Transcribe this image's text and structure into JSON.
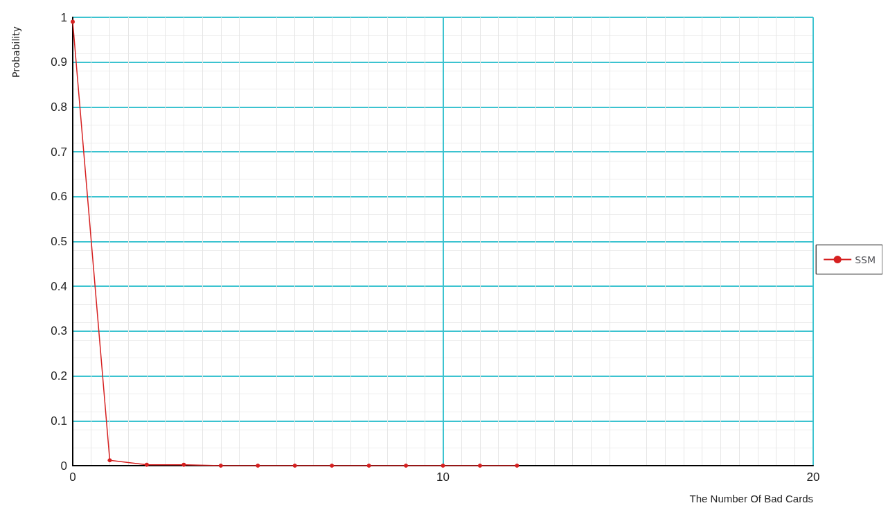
{
  "chart_data": {
    "type": "line",
    "xlabel": "The Number Of Bad Cards",
    "ylabel": "Probability",
    "x": [
      0,
      1,
      2,
      3,
      4,
      5,
      6,
      7,
      8,
      9,
      10,
      11,
      12
    ],
    "series": [
      {
        "name": "SSM",
        "color": "#d62020",
        "values": [
          0.99,
          0.012,
          0.002,
          0.002,
          0,
          0,
          0,
          0,
          0,
          0,
          0,
          0,
          0
        ]
      }
    ],
    "xlim": [
      0,
      20
    ],
    "xticks": [
      0,
      10,
      20
    ],
    "ylim": [
      0,
      1
    ],
    "yticks": [
      0,
      0.1,
      0.2,
      0.3,
      0.4,
      0.5,
      0.6,
      0.7,
      0.8,
      0.9,
      1
    ],
    "grid": true,
    "legend": "right",
    "marker": "circle",
    "line_style": "solid"
  }
}
